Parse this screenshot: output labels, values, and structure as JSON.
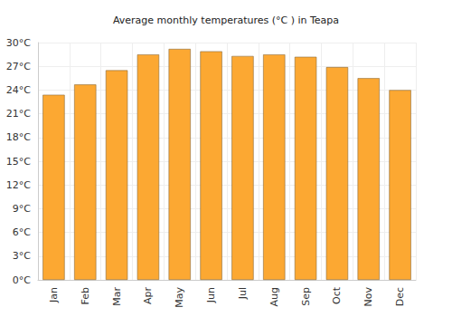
{
  "chart_data": {
    "type": "bar",
    "title": "Average monthly temperatures (°C ) in Teapa",
    "categories": [
      "Jan",
      "Feb",
      "Mar",
      "Apr",
      "May",
      "Jun",
      "Jul",
      "Aug",
      "Sep",
      "Oct",
      "Nov",
      "Dec"
    ],
    "values": [
      23.4,
      24.7,
      26.5,
      28.5,
      29.2,
      28.9,
      28.3,
      28.5,
      28.2,
      26.9,
      25.5,
      24.0
    ],
    "color": "#fca832",
    "ylim": [
      0,
      30
    ],
    "yticks": [
      {
        "value": 0,
        "label": "0°C"
      },
      {
        "value": 3,
        "label": "3°C"
      },
      {
        "value": 6,
        "label": "6°C"
      },
      {
        "value": 9,
        "label": "9°C"
      },
      {
        "value": 12,
        "label": "12°C"
      },
      {
        "value": 15,
        "label": "15°C"
      },
      {
        "value": 18,
        "label": "18°C"
      },
      {
        "value": 21,
        "label": "21°C"
      },
      {
        "value": 24,
        "label": "24°C"
      },
      {
        "value": 27,
        "label": "27°C"
      },
      {
        "value": 30,
        "label": "30°C"
      }
    ],
    "grid": true
  }
}
